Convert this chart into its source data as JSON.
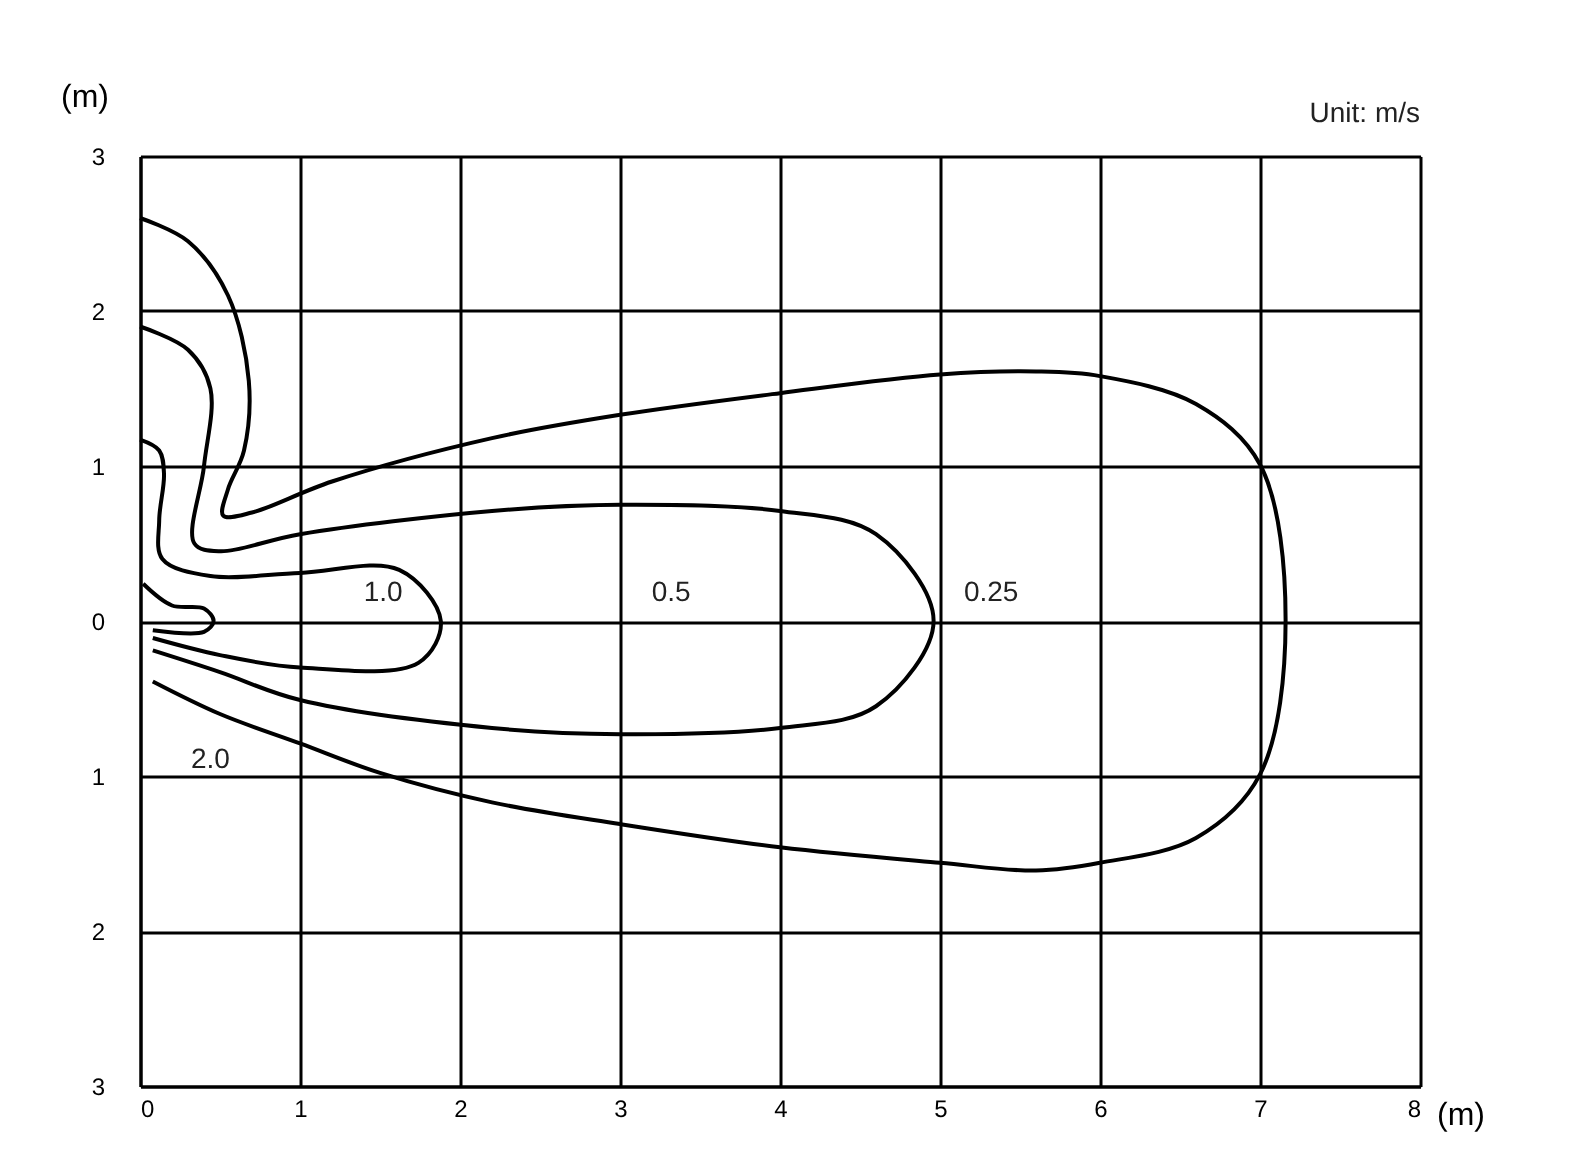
{
  "chart_data": {
    "type": "line",
    "xlabel": "(m)",
    "ylabel": "(m)",
    "xlim": [
      0,
      8
    ],
    "xticks": [
      0,
      1,
      2,
      3,
      4,
      5,
      6,
      7,
      8
    ],
    "ylim": [
      -3,
      3
    ],
    "yticks": [
      {
        "value": -3,
        "label": "3"
      },
      {
        "value": -2,
        "label": "2"
      },
      {
        "value": -1,
        "label": "1"
      },
      0,
      1,
      2,
      3
    ],
    "grid": true,
    "line_style": "solid",
    "marker": "none",
    "series": [
      {
        "color": "#000000",
        "x": [
          0,
          0.3,
          0.55,
          0.68,
          0.65,
          0.55,
          0.52,
          0.7,
          1.2,
          2.2,
          3,
          4,
          5,
          5.6,
          6,
          6.6,
          7,
          7.16,
          7,
          6.6,
          6,
          5.6,
          5,
          4,
          3,
          2.2,
          1.5,
          1,
          0.5,
          0.08
        ],
        "values": [
          2.6,
          2.45,
          2.1,
          1.55,
          1.1,
          0.85,
          0.68,
          0.7,
          0.9,
          1.18,
          1.33,
          1.47,
          1.59,
          1.61,
          1.58,
          1.4,
          1.01,
          0,
          -0.99,
          -1.4,
          -1.56,
          -1.61,
          -1.56,
          -1.46,
          -1.31,
          -1.17,
          -0.98,
          -0.79,
          -0.6,
          -0.39
        ]
      },
      {
        "color": "#000000",
        "x": [
          0,
          0.3,
          0.44,
          0.4,
          0.34,
          0.5,
          1,
          2.2,
          3,
          4,
          4.6,
          4.96,
          4.6,
          4,
          3,
          2.2,
          1,
          0.5,
          0.08
        ],
        "values": [
          1.9,
          1.75,
          1.5,
          1.0,
          0.5,
          0.45,
          0.56,
          0.71,
          0.75,
          0.71,
          0.56,
          0,
          -0.55,
          -0.69,
          -0.73,
          -0.69,
          -0.51,
          -0.33,
          -0.19
        ]
      },
      {
        "color": "#000000",
        "x": [
          0,
          0.12,
          0.15,
          0.12,
          0.14,
          0.44,
          1,
          1.62,
          1.88,
          1.74,
          1,
          0.5,
          0.08
        ],
        "values": [
          1.17,
          1.1,
          0.95,
          0.65,
          0.4,
          0.29,
          0.31,
          0.33,
          0,
          -0.27,
          -0.3,
          -0.22,
          -0.11
        ]
      },
      {
        "color": "#000000",
        "x": [
          0.02,
          0.2,
          0.4,
          0.46,
          0.4,
          0.08
        ],
        "values": [
          0.24,
          0.1,
          0.08,
          0,
          -0.07,
          -0.06
        ]
      }
    ],
    "annotations": [
      "Unit: m/s",
      "0.25",
      "0.5",
      "1.0",
      "2.0"
    ]
  }
}
